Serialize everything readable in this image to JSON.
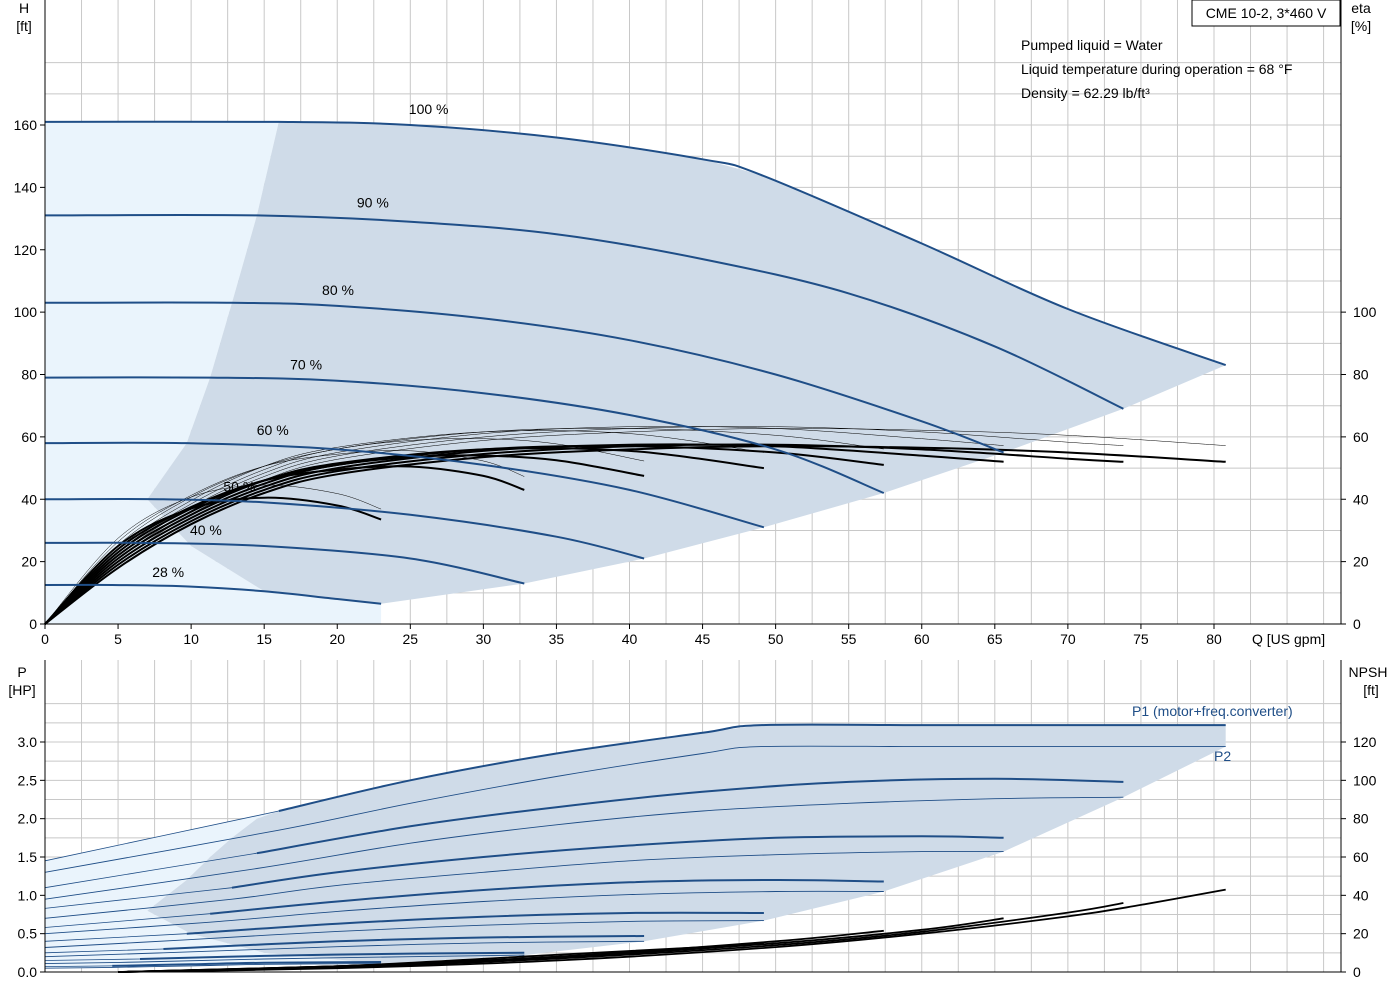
{
  "model": "CME 10-2, 3*460 V",
  "info_lines": [
    "Pumped liquid = Water",
    "Liquid temperature during operation = 68 °F",
    "Density = 62.29 lb/ft³"
  ],
  "colors": {
    "head": "#1f4e87",
    "efficiency": "#000000",
    "fill": "#cfdbe8",
    "fill_light": "#eaf4fc",
    "grid": "#c8c8c8"
  },
  "chart_data": [
    {
      "type": "line",
      "name": "head-efficiency",
      "xlabel": "Q [US gpm]",
      "ylabel": "H",
      "ylabel_unit": "[ft]",
      "y2label": "eta",
      "y2label_unit": "[%]",
      "xlim": [
        0,
        82
      ],
      "ylim": [
        0,
        180
      ],
      "y2lim": [
        0,
        180
      ],
      "xticks": [
        0,
        5,
        10,
        15,
        20,
        25,
        30,
        35,
        40,
        45,
        50,
        55,
        60,
        65,
        70,
        75,
        80
      ],
      "xtick_labels": [
        "0",
        "5",
        "10",
        "15",
        "20",
        "25",
        "30",
        "35",
        "40",
        "45",
        "50",
        "55",
        "60",
        "65",
        "70",
        "75",
        "80"
      ],
      "yticks": [
        0,
        20,
        40,
        60,
        80,
        100,
        120,
        140,
        160
      ],
      "ytick_labels": [
        "0",
        "20",
        "40",
        "60",
        "80",
        "100",
        "120",
        "140",
        "160"
      ],
      "y2ticks": [
        0,
        20,
        40,
        60,
        80,
        100
      ],
      "y2tick_labels": [
        "0",
        "20",
        "40",
        "60",
        "80",
        "100"
      ],
      "grid": true,
      "head_curves": [
        {
          "label": "100 %",
          "x": [
            0,
            16,
            25,
            35,
            45,
            49,
            60,
            70,
            80.8
          ],
          "y": [
            161,
            161,
            160,
            156,
            149,
            144,
            122,
            101,
            83
          ]
        },
        {
          "label": "90 %",
          "x": [
            0,
            14.5,
            25,
            35,
            45,
            55,
            65,
            73.8
          ],
          "y": [
            131,
            131,
            129,
            125,
            117,
            106,
            89,
            69
          ]
        },
        {
          "label": "80 %",
          "x": [
            0,
            12.8,
            20,
            30,
            40,
            50,
            60,
            65.6
          ],
          "y": [
            103,
            103,
            102,
            98,
            91,
            80,
            65,
            55
          ]
        },
        {
          "label": "70 %",
          "x": [
            0,
            11.3,
            20,
            30,
            40,
            50,
            57.4
          ],
          "y": [
            79,
            79,
            78,
            74,
            67,
            56,
            42
          ]
        },
        {
          "label": "60 %",
          "x": [
            0,
            9.7,
            20,
            30,
            40,
            49.2
          ],
          "y": [
            58,
            58,
            56,
            51,
            43,
            31
          ]
        },
        {
          "label": "50 %",
          "x": [
            0,
            8.1,
            15,
            25,
            35,
            41
          ],
          "y": [
            40,
            40,
            39,
            35,
            28,
            21
          ]
        },
        {
          "label": "40 %",
          "x": [
            0,
            6.5,
            15,
            25,
            32.8
          ],
          "y": [
            26,
            26,
            25,
            21,
            13
          ]
        },
        {
          "label": "28 %",
          "x": [
            0,
            4.6,
            10,
            15,
            20,
            23
          ],
          "y": [
            12.5,
            12.5,
            12,
            10.5,
            8,
            6.5
          ]
        }
      ],
      "efficiency_curves": [
        {
          "x": [
            0,
            5,
            10,
            15,
            20,
            30,
            40,
            50,
            60,
            70,
            80.8
          ],
          "y": [
            0,
            18,
            32,
            42,
            48,
            53.5,
            56,
            57,
            56.5,
            55,
            52
          ]
        },
        {
          "x": [
            0,
            5,
            10,
            15,
            20,
            30,
            40,
            50,
            60,
            70,
            73.8
          ],
          "y": [
            0,
            19,
            33,
            43,
            49,
            54.5,
            57,
            57.5,
            56,
            53,
            52
          ]
        },
        {
          "x": [
            0,
            5,
            10,
            15,
            20,
            30,
            40,
            50,
            60,
            65.6
          ],
          "y": [
            0,
            20,
            34,
            44,
            50,
            55.5,
            57.5,
            57,
            54,
            52
          ]
        },
        {
          "x": [
            0,
            5,
            10,
            15,
            20,
            30,
            40,
            50,
            57.4
          ],
          "y": [
            0,
            21,
            35,
            45,
            51,
            56,
            57,
            55,
            51
          ]
        },
        {
          "x": [
            0,
            5,
            10,
            15,
            20,
            30,
            40,
            49.2
          ],
          "y": [
            0,
            22,
            36,
            46,
            51.5,
            56,
            55.5,
            50
          ]
        },
        {
          "x": [
            0,
            5,
            10,
            15,
            20,
            25,
            30,
            35,
            41
          ],
          "y": [
            0,
            23,
            37,
            46,
            51,
            53.5,
            54,
            52.5,
            47.5
          ]
        },
        {
          "x": [
            0,
            5,
            10,
            15,
            20,
            25,
            30,
            32.8
          ],
          "y": [
            0,
            24,
            37.5,
            46,
            49.5,
            50.5,
            47.5,
            43
          ]
        },
        {
          "x": [
            0,
            5,
            10,
            15,
            20,
            23
          ],
          "y": [
            0,
            25,
            37,
            40.5,
            38,
            33.5
          ]
        }
      ],
      "envelope_upper_x": [
        16,
        25,
        35,
        45,
        49,
        60,
        70,
        80.8
      ],
      "envelope_upper_y": [
        161,
        160,
        156,
        149,
        144,
        122,
        101,
        83
      ],
      "envelope_lower_x": [
        80.8,
        73.8,
        65.6,
        57.4,
        49.2,
        41,
        32.8,
        23
      ],
      "envelope_lower_y": [
        83,
        69,
        55,
        42,
        31,
        21,
        13,
        6.5
      ],
      "envelope_left_x": [
        23,
        15,
        10,
        7,
        9.7,
        11.3,
        12.8,
        14.5,
        16
      ],
      "envelope_left_y": [
        6.5,
        10.5,
        25,
        40,
        58,
        79,
        103,
        131,
        161
      ]
    },
    {
      "type": "line",
      "name": "power-npsh",
      "ylabel": "P",
      "ylabel_unit": "[HP]",
      "y2label": "NPSH",
      "y2label_unit": "[ft]",
      "xlim": [
        0,
        82
      ],
      "ylim": [
        0,
        3.5
      ],
      "y2lim": [
        0,
        140
      ],
      "yticks": [
        0,
        0.5,
        1.0,
        1.5,
        2.0,
        2.5,
        3.0
      ],
      "ytick_labels": [
        "0.0",
        "0.5",
        "1.0",
        "1.5",
        "2.0",
        "2.5",
        "3.0"
      ],
      "y2ticks": [
        0,
        20,
        40,
        60,
        80,
        100,
        120
      ],
      "y2tick_labels": [
        "0",
        "20",
        "40",
        "60",
        "80",
        "100",
        "120"
      ],
      "grid": true,
      "p1_label": "P1 (motor+freq.converter)",
      "p2_label": "P2",
      "p1_curves": [
        {
          "x": [
            0,
            16,
            25,
            35,
            45,
            49,
            60,
            70,
            80.8
          ],
          "y": [
            1.45,
            2.1,
            2.5,
            2.85,
            3.12,
            3.22,
            3.22,
            3.22,
            3.22
          ]
        },
        {
          "x": [
            0,
            14.5,
            25,
            35,
            45,
            55,
            65,
            73.8
          ],
          "y": [
            1.1,
            1.55,
            1.9,
            2.15,
            2.35,
            2.48,
            2.52,
            2.48
          ]
        },
        {
          "x": [
            0,
            12.8,
            20,
            30,
            40,
            50,
            60,
            65.6
          ],
          "y": [
            0.83,
            1.1,
            1.3,
            1.5,
            1.65,
            1.75,
            1.77,
            1.75
          ]
        },
        {
          "x": [
            0,
            11.3,
            20,
            30,
            40,
            50,
            57.4
          ],
          "y": [
            0.58,
            0.76,
            0.92,
            1.07,
            1.17,
            1.2,
            1.18
          ]
        },
        {
          "x": [
            0,
            9.7,
            20,
            30,
            40,
            49.2
          ],
          "y": [
            0.4,
            0.5,
            0.63,
            0.72,
            0.77,
            0.77
          ]
        },
        {
          "x": [
            0,
            8.1,
            20,
            30,
            41
          ],
          "y": [
            0.25,
            0.3,
            0.4,
            0.45,
            0.47
          ]
        },
        {
          "x": [
            0,
            6.5,
            15,
            25,
            32.8
          ],
          "y": [
            0.15,
            0.17,
            0.21,
            0.24,
            0.25
          ]
        },
        {
          "x": [
            0,
            4.6,
            10,
            15,
            23
          ],
          "y": [
            0.07,
            0.08,
            0.1,
            0.12,
            0.13
          ]
        }
      ],
      "p2_curves": [
        {
          "x": [
            0,
            16,
            25,
            35,
            45,
            49,
            60,
            70,
            80.8
          ],
          "y": [
            1.3,
            1.85,
            2.2,
            2.55,
            2.85,
            2.94,
            2.94,
            2.94,
            2.94
          ]
        },
        {
          "x": [
            0,
            14.5,
            25,
            35,
            45,
            55,
            65,
            73.8
          ],
          "y": [
            0.95,
            1.35,
            1.68,
            1.92,
            2.1,
            2.2,
            2.26,
            2.28
          ]
        },
        {
          "x": [
            0,
            12.8,
            20,
            30,
            40,
            50,
            60,
            65.6
          ],
          "y": [
            0.7,
            0.95,
            1.13,
            1.3,
            1.45,
            1.53,
            1.57,
            1.57
          ]
        },
        {
          "x": [
            0,
            11.3,
            20,
            30,
            40,
            50,
            57.4
          ],
          "y": [
            0.5,
            0.65,
            0.79,
            0.92,
            1.01,
            1.05,
            1.05
          ]
        },
        {
          "x": [
            0,
            9.7,
            20,
            30,
            40,
            49.2
          ],
          "y": [
            0.32,
            0.42,
            0.53,
            0.61,
            0.66,
            0.67
          ]
        },
        {
          "x": [
            0,
            8.1,
            20,
            30,
            41
          ],
          "y": [
            0.2,
            0.25,
            0.33,
            0.38,
            0.4
          ]
        },
        {
          "x": [
            0,
            6.5,
            15,
            25,
            32.8
          ],
          "y": [
            0.11,
            0.13,
            0.17,
            0.2,
            0.22
          ]
        },
        {
          "x": [
            0,
            4.6,
            10,
            15,
            23
          ],
          "y": [
            0.05,
            0.06,
            0.08,
            0.1,
            0.11
          ]
        }
      ],
      "npsh_curves": [
        {
          "x": [
            5,
            20,
            35,
            50,
            60,
            70,
            75,
            80.8
          ],
          "y": [
            0,
            2,
            6,
            13,
            20,
            29,
            35,
            43
          ]
        },
        {
          "x": [
            5,
            20,
            35,
            50,
            60,
            70,
            73.8
          ],
          "y": [
            0,
            2.5,
            7,
            14,
            21,
            31,
            36
          ]
        },
        {
          "x": [
            5,
            20,
            35,
            50,
            60,
            65.6
          ],
          "y": [
            0,
            2.5,
            7.5,
            15,
            22,
            28
          ]
        },
        {
          "x": [
            5,
            20,
            35,
            50,
            57.4
          ],
          "y": [
            0,
            3,
            8,
            16,
            21.5
          ]
        },
        {
          "x": [
            5,
            20,
            35,
            45,
            49.2
          ],
          "y": [
            0,
            3,
            9,
            13,
            15
          ]
        },
        {
          "x": [
            5,
            20,
            30,
            38,
            41
          ],
          "y": [
            0,
            3,
            6,
            9,
            10
          ]
        },
        {
          "x": [
            5,
            20,
            28,
            32.8
          ],
          "y": [
            0,
            3,
            5,
            6.5
          ]
        },
        {
          "x": [
            5,
            15,
            20,
            23
          ],
          "y": [
            0,
            1.5,
            2.5,
            3.5
          ]
        }
      ],
      "envelope_upper_x": [
        16,
        25,
        35,
        45,
        49,
        60,
        70,
        80.8
      ],
      "envelope_upper_y": [
        2.1,
        2.5,
        2.85,
        3.12,
        3.22,
        3.22,
        3.22,
        3.22
      ],
      "envelope_lower_x": [
        80.8,
        73.8,
        65.6,
        57.4,
        49.2,
        41,
        32.8,
        23
      ],
      "envelope_lower_y": [
        2.94,
        2.28,
        1.57,
        1.05,
        0.67,
        0.4,
        0.22,
        0.11
      ],
      "envelope_left_x": [
        23,
        15,
        10,
        7,
        9.7,
        11.3,
        12.8,
        14.5,
        16
      ],
      "envelope_left_y": [
        0.11,
        0.25,
        0.5,
        0.8,
        1.2,
        1.5,
        1.75,
        2.0,
        2.1
      ]
    }
  ],
  "model_box": {
    "text": "CME 10-2, 3*460 V"
  }
}
